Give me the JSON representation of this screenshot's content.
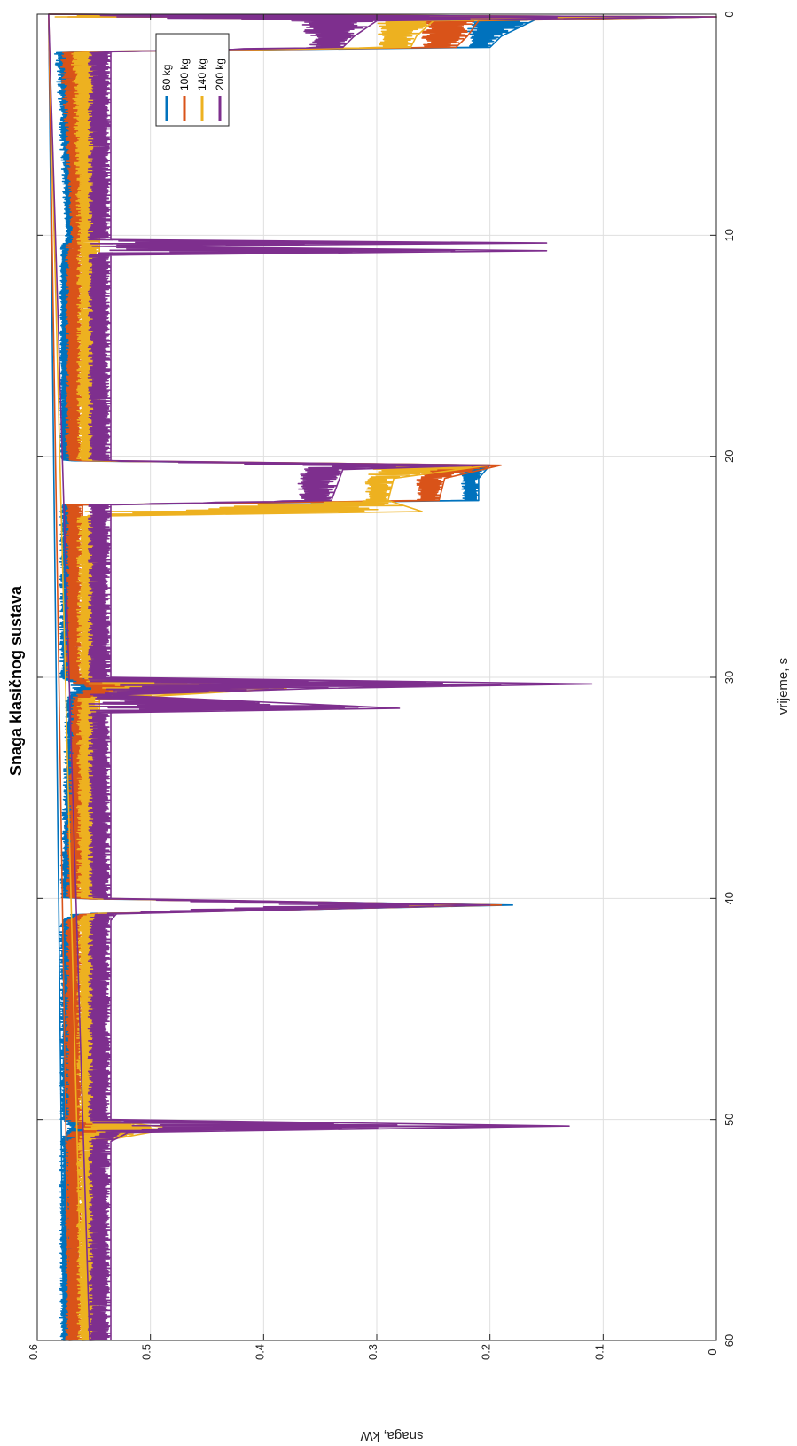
{
  "chart_data": {
    "type": "line",
    "orientation": "rotated-90-clockwise",
    "title": "Snaga klasičnog sustava",
    "xlabel": "vrijeme, s",
    "ylabel": "snaga, kW",
    "xlim": [
      0,
      60
    ],
    "ylim": [
      0,
      0.6
    ],
    "xticks": [
      "0",
      "10",
      "20",
      "30",
      "40",
      "50",
      "60"
    ],
    "yticks": [
      "0",
      "0.1",
      "0.2",
      "0.3",
      "0.4",
      "0.5",
      "0.6"
    ],
    "grid": true,
    "legend_position": "top-right",
    "series": [
      {
        "name": "60 kg",
        "color": "#0072BD",
        "band_low": [
          [
            0,
            0.59
          ],
          [
            0.12,
            0.0
          ],
          [
            0.25,
            0.16
          ],
          [
            1.0,
            0.19
          ],
          [
            1.5,
            0.2
          ],
          [
            1.7,
            0.56
          ],
          [
            10.2,
            0.565
          ],
          [
            10.5,
            0.57
          ],
          [
            20.2,
            0.57
          ],
          [
            20.4,
            0.2
          ],
          [
            21.0,
            0.21
          ],
          [
            22.0,
            0.21
          ],
          [
            22.2,
            0.565
          ],
          [
            30.0,
            0.565
          ],
          [
            30.4,
            0.53
          ],
          [
            31.0,
            0.56
          ],
          [
            40.0,
            0.565
          ],
          [
            40.3,
            0.18
          ],
          [
            40.7,
            0.55
          ],
          [
            41.0,
            0.565
          ],
          [
            50.0,
            0.565
          ],
          [
            50.3,
            0.55
          ],
          [
            51.0,
            0.565
          ],
          [
            60,
            0.565
          ]
        ],
        "band_high": [
          [
            0,
            0.59
          ],
          [
            0.12,
            0.59
          ],
          [
            0.25,
            0.22
          ],
          [
            1.0,
            0.22
          ],
          [
            1.5,
            0.22
          ],
          [
            1.7,
            0.585
          ],
          [
            10.2,
            0.575
          ],
          [
            10.5,
            0.58
          ],
          [
            20.2,
            0.58
          ],
          [
            20.4,
            0.23
          ],
          [
            21.0,
            0.225
          ],
          [
            22.0,
            0.225
          ],
          [
            22.2,
            0.58
          ],
          [
            30.0,
            0.58
          ],
          [
            30.4,
            0.57
          ],
          [
            31.0,
            0.575
          ],
          [
            40.0,
            0.58
          ],
          [
            40.3,
            0.22
          ],
          [
            40.7,
            0.57
          ],
          [
            41.0,
            0.58
          ],
          [
            50.0,
            0.58
          ],
          [
            50.3,
            0.575
          ],
          [
            51.0,
            0.58
          ],
          [
            60,
            0.58
          ]
        ]
      },
      {
        "name": "100 kg",
        "color": "#D95319",
        "band_low": [
          [
            0,
            0.59
          ],
          [
            0.12,
            0.0
          ],
          [
            0.3,
            0.21
          ],
          [
            1.0,
            0.22
          ],
          [
            1.5,
            0.23
          ],
          [
            1.7,
            0.555
          ],
          [
            10.2,
            0.56
          ],
          [
            10.5,
            0.56
          ],
          [
            20.2,
            0.56
          ],
          [
            20.4,
            0.19
          ],
          [
            21.0,
            0.24
          ],
          [
            22.0,
            0.245
          ],
          [
            22.2,
            0.56
          ],
          [
            30.0,
            0.56
          ],
          [
            30.5,
            0.5
          ],
          [
            31.0,
            0.555
          ],
          [
            40.0,
            0.56
          ],
          [
            40.3,
            0.19
          ],
          [
            40.7,
            0.55
          ],
          [
            41.0,
            0.56
          ],
          [
            50.0,
            0.56
          ],
          [
            50.4,
            0.5
          ],
          [
            51.0,
            0.56
          ],
          [
            60,
            0.56
          ]
        ],
        "band_high": [
          [
            0,
            0.59
          ],
          [
            0.12,
            0.59
          ],
          [
            0.3,
            0.26
          ],
          [
            1.0,
            0.26
          ],
          [
            1.5,
            0.26
          ],
          [
            1.7,
            0.58
          ],
          [
            10.2,
            0.57
          ],
          [
            10.5,
            0.575
          ],
          [
            20.2,
            0.575
          ],
          [
            20.4,
            0.26
          ],
          [
            21.0,
            0.265
          ],
          [
            22.0,
            0.265
          ],
          [
            22.2,
            0.575
          ],
          [
            30.0,
            0.575
          ],
          [
            30.5,
            0.565
          ],
          [
            31.0,
            0.57
          ],
          [
            40.0,
            0.575
          ],
          [
            40.3,
            0.25
          ],
          [
            40.7,
            0.565
          ],
          [
            41.0,
            0.575
          ],
          [
            50.0,
            0.575
          ],
          [
            50.4,
            0.57
          ],
          [
            51.0,
            0.575
          ],
          [
            60,
            0.575
          ]
        ]
      },
      {
        "name": "140 kg",
        "color": "#EDB120",
        "band_low": [
          [
            0,
            0.59
          ],
          [
            0.12,
            0.0
          ],
          [
            0.3,
            0.25
          ],
          [
            1.0,
            0.265
          ],
          [
            1.5,
            0.27
          ],
          [
            1.7,
            0.545
          ],
          [
            10.2,
            0.545
          ],
          [
            10.5,
            0.545
          ],
          [
            20.2,
            0.545
          ],
          [
            20.4,
            0.2
          ],
          [
            21.0,
            0.285
          ],
          [
            22.0,
            0.29
          ],
          [
            22.5,
            0.26
          ],
          [
            22.7,
            0.545
          ],
          [
            30.0,
            0.545
          ],
          [
            30.5,
            0.38
          ],
          [
            31.0,
            0.545
          ],
          [
            40.0,
            0.545
          ],
          [
            40.3,
            0.2
          ],
          [
            40.7,
            0.54
          ],
          [
            41.0,
            0.545
          ],
          [
            50.0,
            0.545
          ],
          [
            50.4,
            0.48
          ],
          [
            51.0,
            0.545
          ],
          [
            60,
            0.545
          ]
        ],
        "band_high": [
          [
            0,
            0.59
          ],
          [
            0.12,
            0.59
          ],
          [
            0.3,
            0.3
          ],
          [
            1.0,
            0.3
          ],
          [
            1.5,
            0.3
          ],
          [
            1.7,
            0.57
          ],
          [
            10.2,
            0.565
          ],
          [
            10.5,
            0.565
          ],
          [
            20.2,
            0.565
          ],
          [
            20.4,
            0.3
          ],
          [
            21.0,
            0.31
          ],
          [
            22.0,
            0.31
          ],
          [
            22.5,
            0.56
          ],
          [
            22.7,
            0.565
          ],
          [
            30.0,
            0.565
          ],
          [
            30.5,
            0.555
          ],
          [
            31.0,
            0.565
          ],
          [
            40.0,
            0.565
          ],
          [
            40.3,
            0.29
          ],
          [
            40.7,
            0.56
          ],
          [
            41.0,
            0.565
          ],
          [
            50.0,
            0.565
          ],
          [
            50.4,
            0.56
          ],
          [
            51.0,
            0.565
          ],
          [
            60,
            0.565
          ]
        ]
      },
      {
        "name": "200 kg",
        "color": "#7E2F8E",
        "band_low": [
          [
            0,
            0.59
          ],
          [
            0.12,
            0.0
          ],
          [
            0.3,
            0.3
          ],
          [
            1.0,
            0.32
          ],
          [
            1.5,
            0.33
          ],
          [
            1.7,
            0.535
          ],
          [
            10.2,
            0.535
          ],
          [
            10.35,
            0.15
          ],
          [
            10.5,
            0.53
          ],
          [
            10.7,
            0.15
          ],
          [
            10.9,
            0.535
          ],
          [
            20.2,
            0.535
          ],
          [
            20.4,
            0.2
          ],
          [
            20.6,
            0.33
          ],
          [
            22.0,
            0.34
          ],
          [
            22.2,
            0.535
          ],
          [
            30.0,
            0.535
          ],
          [
            30.3,
            0.11
          ],
          [
            30.5,
            0.35
          ],
          [
            30.8,
            0.535
          ],
          [
            31.4,
            0.28
          ],
          [
            31.6,
            0.535
          ],
          [
            40.0,
            0.535
          ],
          [
            40.3,
            0.2
          ],
          [
            40.7,
            0.53
          ],
          [
            41.0,
            0.535
          ],
          [
            50.0,
            0.535
          ],
          [
            50.3,
            0.13
          ],
          [
            50.6,
            0.52
          ],
          [
            51.0,
            0.535
          ],
          [
            60,
            0.535
          ]
        ],
        "band_high": [
          [
            0,
            0.59
          ],
          [
            0.12,
            0.59
          ],
          [
            0.3,
            0.38
          ],
          [
            1.0,
            0.36
          ],
          [
            1.5,
            0.36
          ],
          [
            1.7,
            0.555
          ],
          [
            10.2,
            0.555
          ],
          [
            10.35,
            0.555
          ],
          [
            10.5,
            0.555
          ],
          [
            10.7,
            0.555
          ],
          [
            10.9,
            0.555
          ],
          [
            20.2,
            0.555
          ],
          [
            20.4,
            0.37
          ],
          [
            20.6,
            0.37
          ],
          [
            22.0,
            0.37
          ],
          [
            22.2,
            0.555
          ],
          [
            30.0,
            0.555
          ],
          [
            30.3,
            0.555
          ],
          [
            30.5,
            0.555
          ],
          [
            30.8,
            0.555
          ],
          [
            31.4,
            0.555
          ],
          [
            31.6,
            0.555
          ],
          [
            40.0,
            0.555
          ],
          [
            40.3,
            0.38
          ],
          [
            40.7,
            0.55
          ],
          [
            41.0,
            0.555
          ],
          [
            50.0,
            0.555
          ],
          [
            50.3,
            0.55
          ],
          [
            50.6,
            0.55
          ],
          [
            51.0,
            0.555
          ],
          [
            60,
            0.555
          ]
        ]
      }
    ]
  }
}
